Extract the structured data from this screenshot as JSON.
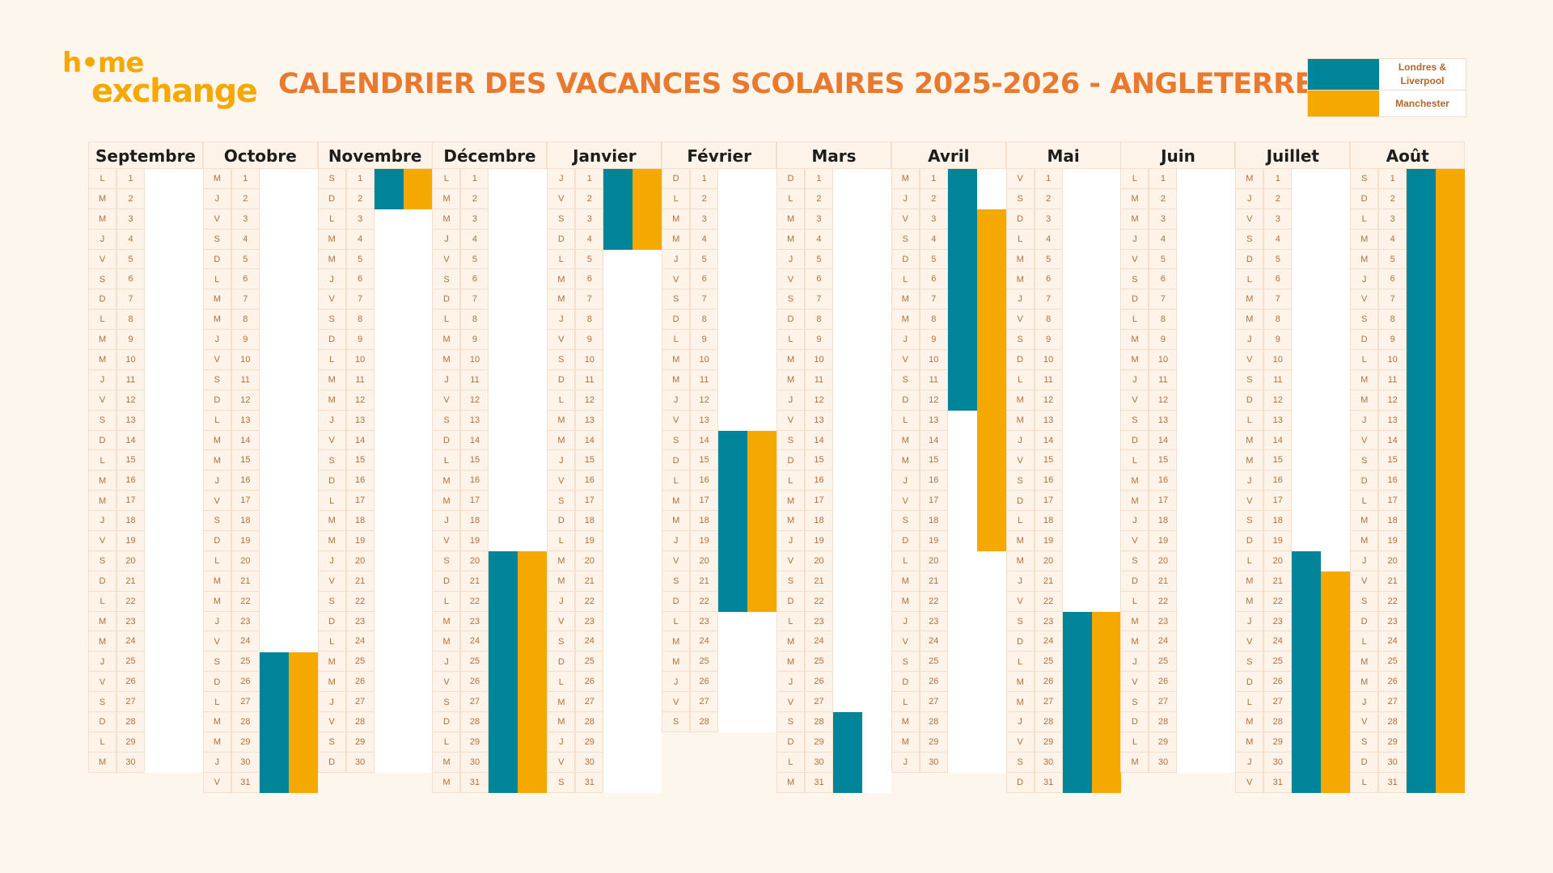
{
  "logo": {
    "line1": "h•me",
    "line2": "exchange",
    "color": "#F5A800"
  },
  "title": "CALENDRIER DES VACANCES SCOLAIRES 2025-2026 - ANGLETERRE",
  "legend": [
    {
      "zone": "londres",
      "label": "Londres & Liverpool",
      "color": "#00849A"
    },
    {
      "zone": "manchester",
      "label": "Manchester",
      "color": "#F5A800"
    }
  ],
  "months": [
    {
      "name": "Septembre",
      "days": 30,
      "weekdays": "LMMJVSDLMMJVSDLMMJVSDLMMJVSDLM",
      "vacations": []
    },
    {
      "name": "Octobre",
      "days": 31,
      "weekdays": "MJVSDLMMJVSDLMMJVSDLMMJVSDLMMJV",
      "vacations": [
        {
          "zone": "londres",
          "from": 25,
          "to": 31
        },
        {
          "zone": "manchester",
          "from": 25,
          "to": 31
        }
      ]
    },
    {
      "name": "Novembre",
      "days": 30,
      "weekdays": "SDLMMJVSDLMMJVSDLMMJVSDLMMJVSD",
      "vacations": [
        {
          "zone": "londres",
          "from": 1,
          "to": 2
        },
        {
          "zone": "manchester",
          "from": 1,
          "to": 2
        }
      ]
    },
    {
      "name": "Décembre",
      "days": 31,
      "weekdays": "LMMJVSDLMMJVSDLMMJVSDLMMJVSDLMM",
      "vacations": [
        {
          "zone": "londres",
          "from": 20,
          "to": 31
        },
        {
          "zone": "manchester",
          "from": 20,
          "to": 31
        }
      ]
    },
    {
      "name": "Janvier",
      "days": 31,
      "weekdays": "JVSDLMMJVSDLMMJVSDLMMJVSDLMMJVS",
      "vacations": [
        {
          "zone": "londres",
          "from": 1,
          "to": 4
        },
        {
          "zone": "manchester",
          "from": 1,
          "to": 4
        }
      ]
    },
    {
      "name": "Février",
      "days": 28,
      "weekdays": "DLMMJVSDLMMJVSDLMMJVSDLMMJVS",
      "vacations": [
        {
          "zone": "londres",
          "from": 14,
          "to": 22
        },
        {
          "zone": "manchester",
          "from": 14,
          "to": 22
        }
      ]
    },
    {
      "name": "Mars",
      "days": 31,
      "weekdays": "DLMMJVSDLMMJVSDLMMJVSDLMMJVSDLM",
      "vacations": [
        {
          "zone": "londres",
          "from": 28,
          "to": 31
        }
      ]
    },
    {
      "name": "Avril",
      "days": 30,
      "weekdays": "MJVSDLMMJVSDLMMJVSDLMMJVSDLMMJ",
      "vacations": [
        {
          "zone": "londres",
          "from": 1,
          "to": 12
        },
        {
          "zone": "manchester",
          "from": 3,
          "to": 19
        }
      ]
    },
    {
      "name": "Mai",
      "days": 31,
      "weekdays": "VSDLMMJVSDLMMJVSDLMMJVSDLMMJVSD",
      "vacations": [
        {
          "zone": "londres",
          "from": 23,
          "to": 31
        },
        {
          "zone": "manchester",
          "from": 23,
          "to": 31
        }
      ]
    },
    {
      "name": "Juin",
      "days": 30,
      "weekdays": "LMMJVSDLMMJVSDLMMJVSDLMMJVSDLM",
      "vacations": []
    },
    {
      "name": "Juillet",
      "days": 31,
      "weekdays": "MJVSDLMMJVSDLMMJVSDLMMJVSDLMMJV",
      "vacations": [
        {
          "zone": "londres",
          "from": 20,
          "to": 31
        },
        {
          "zone": "manchester",
          "from": 21,
          "to": 31
        }
      ]
    },
    {
      "name": "Août",
      "days": 31,
      "weekdays": "SDLMMJVSDLMMJVSDLMMJVSDLMMJVSDL",
      "vacations": [
        {
          "zone": "londres",
          "from": 1,
          "to": 31
        },
        {
          "zone": "manchester",
          "from": 1,
          "to": 31
        }
      ]
    }
  ]
}
